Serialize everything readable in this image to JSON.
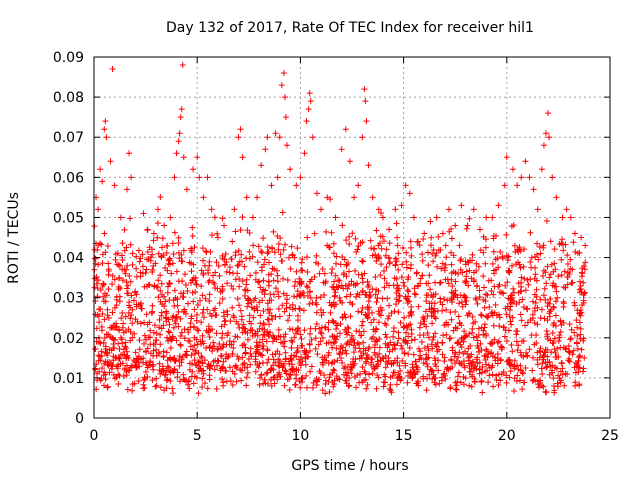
{
  "chart_data": {
    "type": "scatter",
    "title": "Day 132 of 2017, Rate Of TEC Index for receiver hil1",
    "xlabel": "GPS time / hours",
    "ylabel": "ROTI / TECUs",
    "xlim": [
      0,
      25
    ],
    "ylim": [
      0,
      0.09
    ],
    "xticks": [
      0,
      5,
      10,
      15,
      20,
      25
    ],
    "yticks": [
      0,
      0.01,
      0.02,
      0.03,
      0.04,
      0.05,
      0.06,
      0.07,
      0.08,
      0.09
    ],
    "xtick_labels": [
      "0",
      "5",
      "10",
      "15",
      "20",
      "25"
    ],
    "ytick_labels": [
      "0",
      "0.01",
      "0.02",
      "0.03",
      "0.04",
      "0.05",
      "0.06",
      "0.07",
      "0.08",
      "0.09"
    ],
    "grid": true,
    "marker": "+",
    "color": "#ff0000",
    "series": [
      {
        "points": [
          [
            0.1,
            0.055
          ],
          [
            0.2,
            0.052
          ],
          [
            0.3,
            0.062
          ],
          [
            0.4,
            0.059
          ],
          [
            0.5,
            0.072
          ],
          [
            0.55,
            0.074
          ],
          [
            0.6,
            0.07
          ],
          [
            0.9,
            0.087
          ],
          [
            0.8,
            0.064
          ],
          [
            1.0,
            0.058
          ],
          [
            1.3,
            0.05
          ],
          [
            1.6,
            0.057
          ],
          [
            1.7,
            0.066
          ],
          [
            1.8,
            0.06
          ],
          [
            2.4,
            0.051
          ],
          [
            2.6,
            0.047
          ],
          [
            2.9,
            0.046
          ],
          [
            3.1,
            0.052
          ],
          [
            3.4,
            0.048
          ],
          [
            3.7,
            0.05
          ],
          [
            3.9,
            0.06
          ],
          [
            4.0,
            0.066
          ],
          [
            4.1,
            0.069
          ],
          [
            4.15,
            0.071
          ],
          [
            4.2,
            0.075
          ],
          [
            4.25,
            0.077
          ],
          [
            4.3,
            0.088
          ],
          [
            4.35,
            0.065
          ],
          [
            4.5,
            0.057
          ],
          [
            4.8,
            0.062
          ],
          [
            5.0,
            0.065
          ],
          [
            5.1,
            0.06
          ],
          [
            5.3,
            0.055
          ],
          [
            5.5,
            0.06
          ],
          [
            5.7,
            0.052
          ],
          [
            6.0,
            0.045
          ],
          [
            6.3,
            0.048
          ],
          [
            6.7,
            0.044
          ],
          [
            6.8,
            0.052
          ],
          [
            7.0,
            0.07
          ],
          [
            7.1,
            0.072
          ],
          [
            7.2,
            0.065
          ],
          [
            7.4,
            0.055
          ],
          [
            7.7,
            0.05
          ],
          [
            7.9,
            0.055
          ],
          [
            8.1,
            0.063
          ],
          [
            8.3,
            0.067
          ],
          [
            8.4,
            0.07
          ],
          [
            8.6,
            0.058
          ],
          [
            8.8,
            0.071
          ],
          [
            8.9,
            0.06
          ],
          [
            9.0,
            0.07
          ],
          [
            9.1,
            0.083
          ],
          [
            9.2,
            0.086
          ],
          [
            9.25,
            0.08
          ],
          [
            9.3,
            0.075
          ],
          [
            9.35,
            0.068
          ],
          [
            9.5,
            0.062
          ],
          [
            9.8,
            0.058
          ],
          [
            10.0,
            0.06
          ],
          [
            10.2,
            0.066
          ],
          [
            10.3,
            0.074
          ],
          [
            10.4,
            0.077
          ],
          [
            10.45,
            0.081
          ],
          [
            10.5,
            0.079
          ],
          [
            10.6,
            0.07
          ],
          [
            10.8,
            0.056
          ],
          [
            11.0,
            0.052
          ],
          [
            11.3,
            0.055
          ],
          [
            11.7,
            0.05
          ],
          [
            12.0,
            0.067
          ],
          [
            12.2,
            0.072
          ],
          [
            12.4,
            0.064
          ],
          [
            12.6,
            0.055
          ],
          [
            12.8,
            0.058
          ],
          [
            13.0,
            0.07
          ],
          [
            13.1,
            0.082
          ],
          [
            13.15,
            0.079
          ],
          [
            13.2,
            0.074
          ],
          [
            13.3,
            0.063
          ],
          [
            13.5,
            0.055
          ],
          [
            13.8,
            0.052
          ],
          [
            14.0,
            0.05
          ],
          [
            14.3,
            0.047
          ],
          [
            14.6,
            0.052
          ],
          [
            14.9,
            0.053
          ],
          [
            15.1,
            0.058
          ],
          [
            15.3,
            0.056
          ],
          [
            15.5,
            0.05
          ],
          [
            15.7,
            0.044
          ],
          [
            16.0,
            0.046
          ],
          [
            16.3,
            0.049
          ],
          [
            16.6,
            0.05
          ],
          [
            16.9,
            0.046
          ],
          [
            17.2,
            0.052
          ],
          [
            17.5,
            0.048
          ],
          [
            17.8,
            0.053
          ],
          [
            18.1,
            0.048
          ],
          [
            18.4,
            0.052
          ],
          [
            18.7,
            0.047
          ],
          [
            19.0,
            0.05
          ],
          [
            19.3,
            0.05
          ],
          [
            19.6,
            0.053
          ],
          [
            19.9,
            0.058
          ],
          [
            20.0,
            0.065
          ],
          [
            20.3,
            0.062
          ],
          [
            20.5,
            0.058
          ],
          [
            20.7,
            0.06
          ],
          [
            20.9,
            0.064
          ],
          [
            21.1,
            0.06
          ],
          [
            21.3,
            0.057
          ],
          [
            21.5,
            0.052
          ],
          [
            21.7,
            0.062
          ],
          [
            21.8,
            0.068
          ],
          [
            21.9,
            0.071
          ],
          [
            22.0,
            0.076
          ],
          [
            22.05,
            0.07
          ],
          [
            22.2,
            0.06
          ],
          [
            22.4,
            0.055
          ],
          [
            22.7,
            0.05
          ],
          [
            22.9,
            0.052
          ],
          [
            23.1,
            0.05
          ],
          [
            23.3,
            0.046
          ],
          [
            23.6,
            0.045
          ],
          [
            23.8,
            0.043
          ]
        ]
      }
    ]
  }
}
